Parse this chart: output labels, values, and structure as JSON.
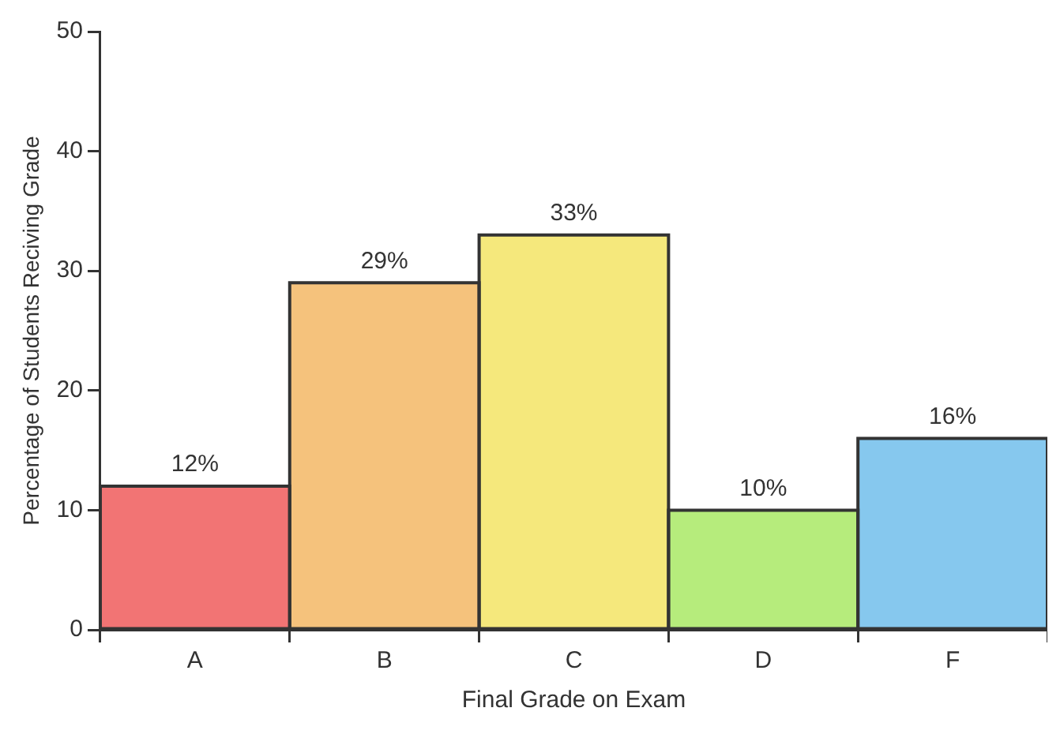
{
  "chart_data": {
    "type": "bar",
    "xlabel": "Final Grade on Exam",
    "ylabel": "Percentage of Students Reciving Grade",
    "categories": [
      "A",
      "B",
      "C",
      "D",
      "F"
    ],
    "values": [
      12,
      29,
      33,
      10,
      16
    ],
    "colors": [
      "#f27474",
      "#f5c27c",
      "#f5e87c",
      "#b6ec7c",
      "#86c8ee"
    ],
    "value_labels": [
      "12%",
      "29%",
      "33%",
      "10%",
      "16%"
    ],
    "ylim": [
      0,
      50
    ],
    "yticks": [
      0,
      10,
      20,
      30,
      40,
      50
    ],
    "grid": false,
    "legend": false
  }
}
